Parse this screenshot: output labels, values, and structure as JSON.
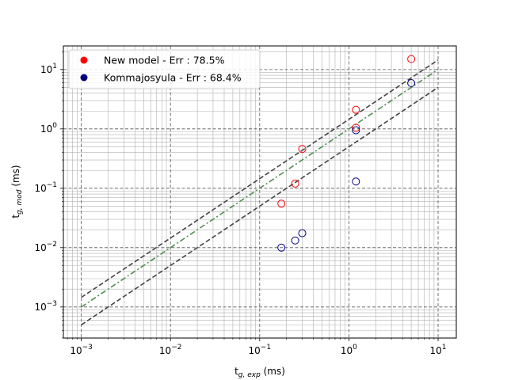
{
  "chart_data": {
    "type": "scatter",
    "xscale": "log",
    "yscale": "log",
    "xlim": [
      0.00063,
      16
    ],
    "ylim": [
      0.0003,
      25
    ],
    "grid": "major and minor",
    "legend_placement": "top-left",
    "xlabel": {
      "main": "t",
      "sub": "g, exp",
      "unit": " (ms)"
    },
    "ylabel": {
      "main": "t",
      "sub": "g, mod",
      "unit": " (ms)"
    },
    "x_ticks": [
      {
        "value": 0.001,
        "label": "10",
        "exp": "−3"
      },
      {
        "value": 0.01,
        "label": "10",
        "exp": "−2"
      },
      {
        "value": 0.1,
        "label": "10",
        "exp": "−1"
      },
      {
        "value": 1,
        "label": "10",
        "exp": "0"
      },
      {
        "value": 10,
        "label": "10",
        "exp": "1"
      }
    ],
    "y_ticks": [
      {
        "value": 0.001,
        "label": "10",
        "exp": "−3"
      },
      {
        "value": 0.01,
        "label": "10",
        "exp": "−2"
      },
      {
        "value": 0.1,
        "label": "10",
        "exp": "−1"
      },
      {
        "value": 1,
        "label": "10",
        "exp": "0"
      },
      {
        "value": 10,
        "label": "10",
        "exp": "1"
      }
    ],
    "reference_lines": [
      {
        "kind": "identity",
        "factor": 1,
        "style": "dash-dot",
        "color": "#4e8f4e",
        "x": [
          0.001,
          10
        ]
      },
      {
        "kind": "upper-bound",
        "factor": 1.45,
        "style": "dashed",
        "color": "#444444",
        "x": [
          0.001,
          10
        ]
      },
      {
        "kind": "lower-bound",
        "factor": 0.5,
        "style": "dashed",
        "color": "#444444",
        "x": [
          0.001,
          10
        ]
      }
    ],
    "series": [
      {
        "name": "New model - Err : 78.5%",
        "color": "#ff0000",
        "marker": "hollow-circle",
        "points": [
          [
            0.175,
            0.055
          ],
          [
            0.25,
            0.12
          ],
          [
            0.3,
            0.46
          ],
          [
            1.2,
            2.1
          ],
          [
            1.2,
            1.05
          ],
          [
            5.0,
            15.0
          ]
        ]
      },
      {
        "name": "Kommajosyula - Err : 68.4%",
        "color": "#00007f",
        "marker": "hollow-circle",
        "points": [
          [
            0.175,
            0.01
          ],
          [
            0.25,
            0.0132
          ],
          [
            0.3,
            0.0175
          ],
          [
            1.2,
            0.13
          ],
          [
            1.2,
            0.95
          ],
          [
            5.0,
            5.9
          ]
        ]
      }
    ]
  }
}
